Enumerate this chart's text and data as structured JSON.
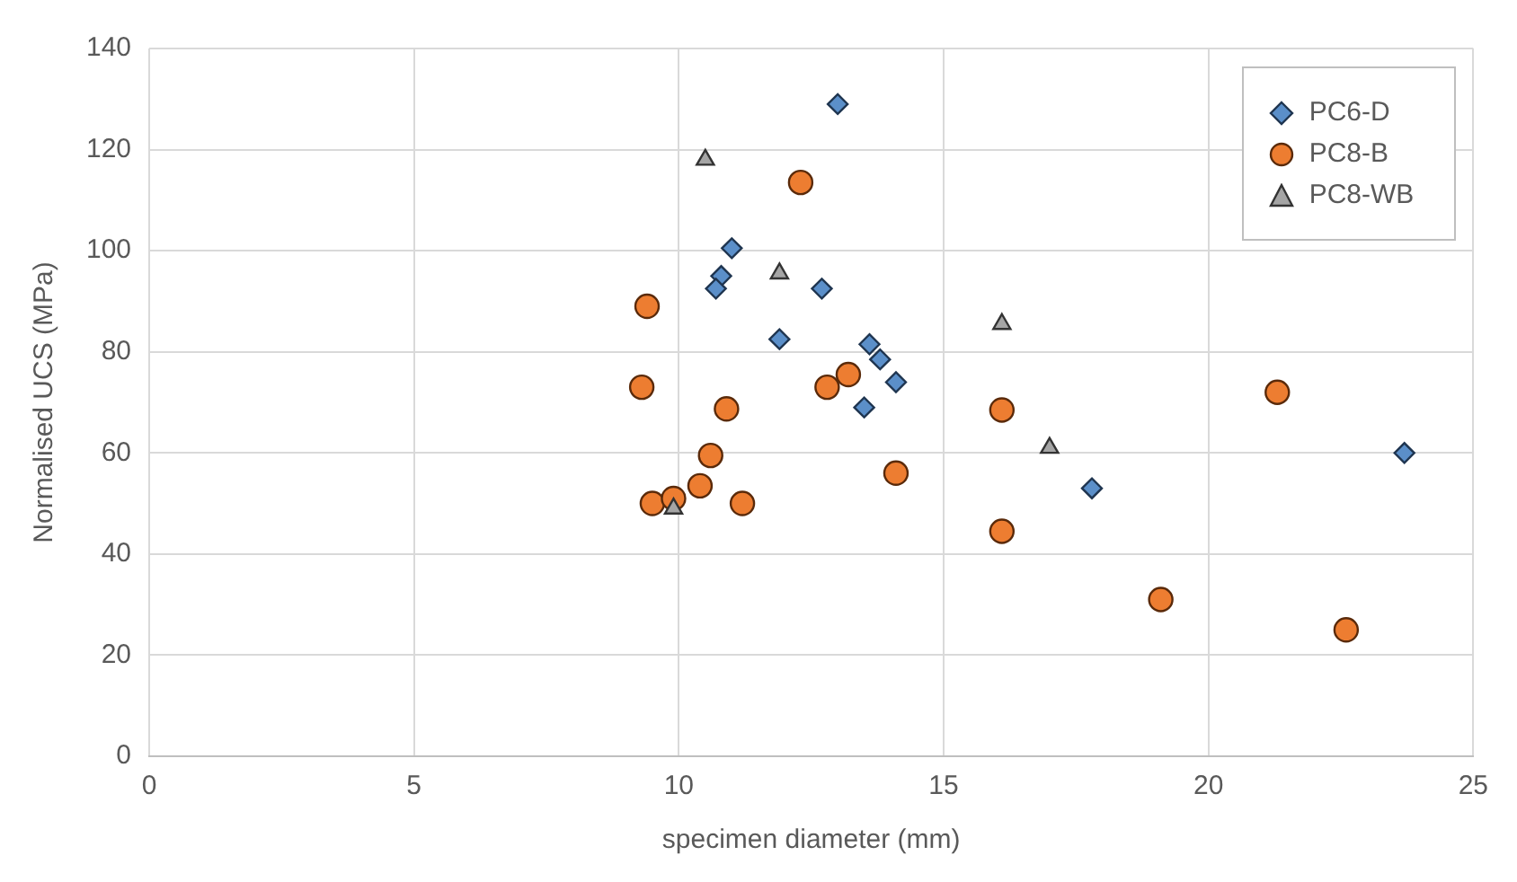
{
  "chart_data": {
    "type": "scatter",
    "xlabel": "specimen diameter (mm)",
    "ylabel": "Normalised UCS (MPa)",
    "xlim": [
      0,
      25
    ],
    "xticks": [
      0,
      5,
      10,
      15,
      20,
      25
    ],
    "ylim": [
      0,
      140
    ],
    "yticks": [
      0,
      20,
      40,
      60,
      80,
      100,
      120,
      140
    ],
    "grid": true,
    "legend": "top right",
    "series": [
      {
        "name": "PC6-D",
        "color": "#5b8fc9",
        "marker": "diamond",
        "x": [
          13.0,
          11.0,
          10.8,
          10.7,
          12.7,
          11.9,
          13.6,
          13.8,
          14.1,
          13.5,
          17.8,
          23.7
        ],
        "values": [
          129,
          100.5,
          95,
          92.5,
          92.5,
          82.5,
          81.5,
          78.5,
          74,
          69,
          53,
          60
        ]
      },
      {
        "name": "PC8-B",
        "color": "#ed7d31",
        "marker": "circle",
        "x": [
          12.3,
          9.4,
          9.3,
          10.9,
          12.8,
          13.2,
          10.6,
          10.4,
          9.5,
          9.9,
          11.2,
          14.1,
          16.1,
          16.1,
          19.1,
          21.3,
          22.6
        ],
        "values": [
          113.5,
          89,
          73,
          68.7,
          73,
          75.5,
          59.5,
          53.5,
          50,
          51,
          50,
          56,
          68.5,
          44.5,
          31,
          72,
          25
        ]
      },
      {
        "name": "PC8-WB",
        "color": "#a5a5a5",
        "marker": "triangle",
        "x": [
          10.5,
          11.9,
          16.1,
          17.0,
          9.9
        ],
        "values": [
          118,
          95.5,
          85.5,
          61,
          49
        ]
      }
    ]
  }
}
